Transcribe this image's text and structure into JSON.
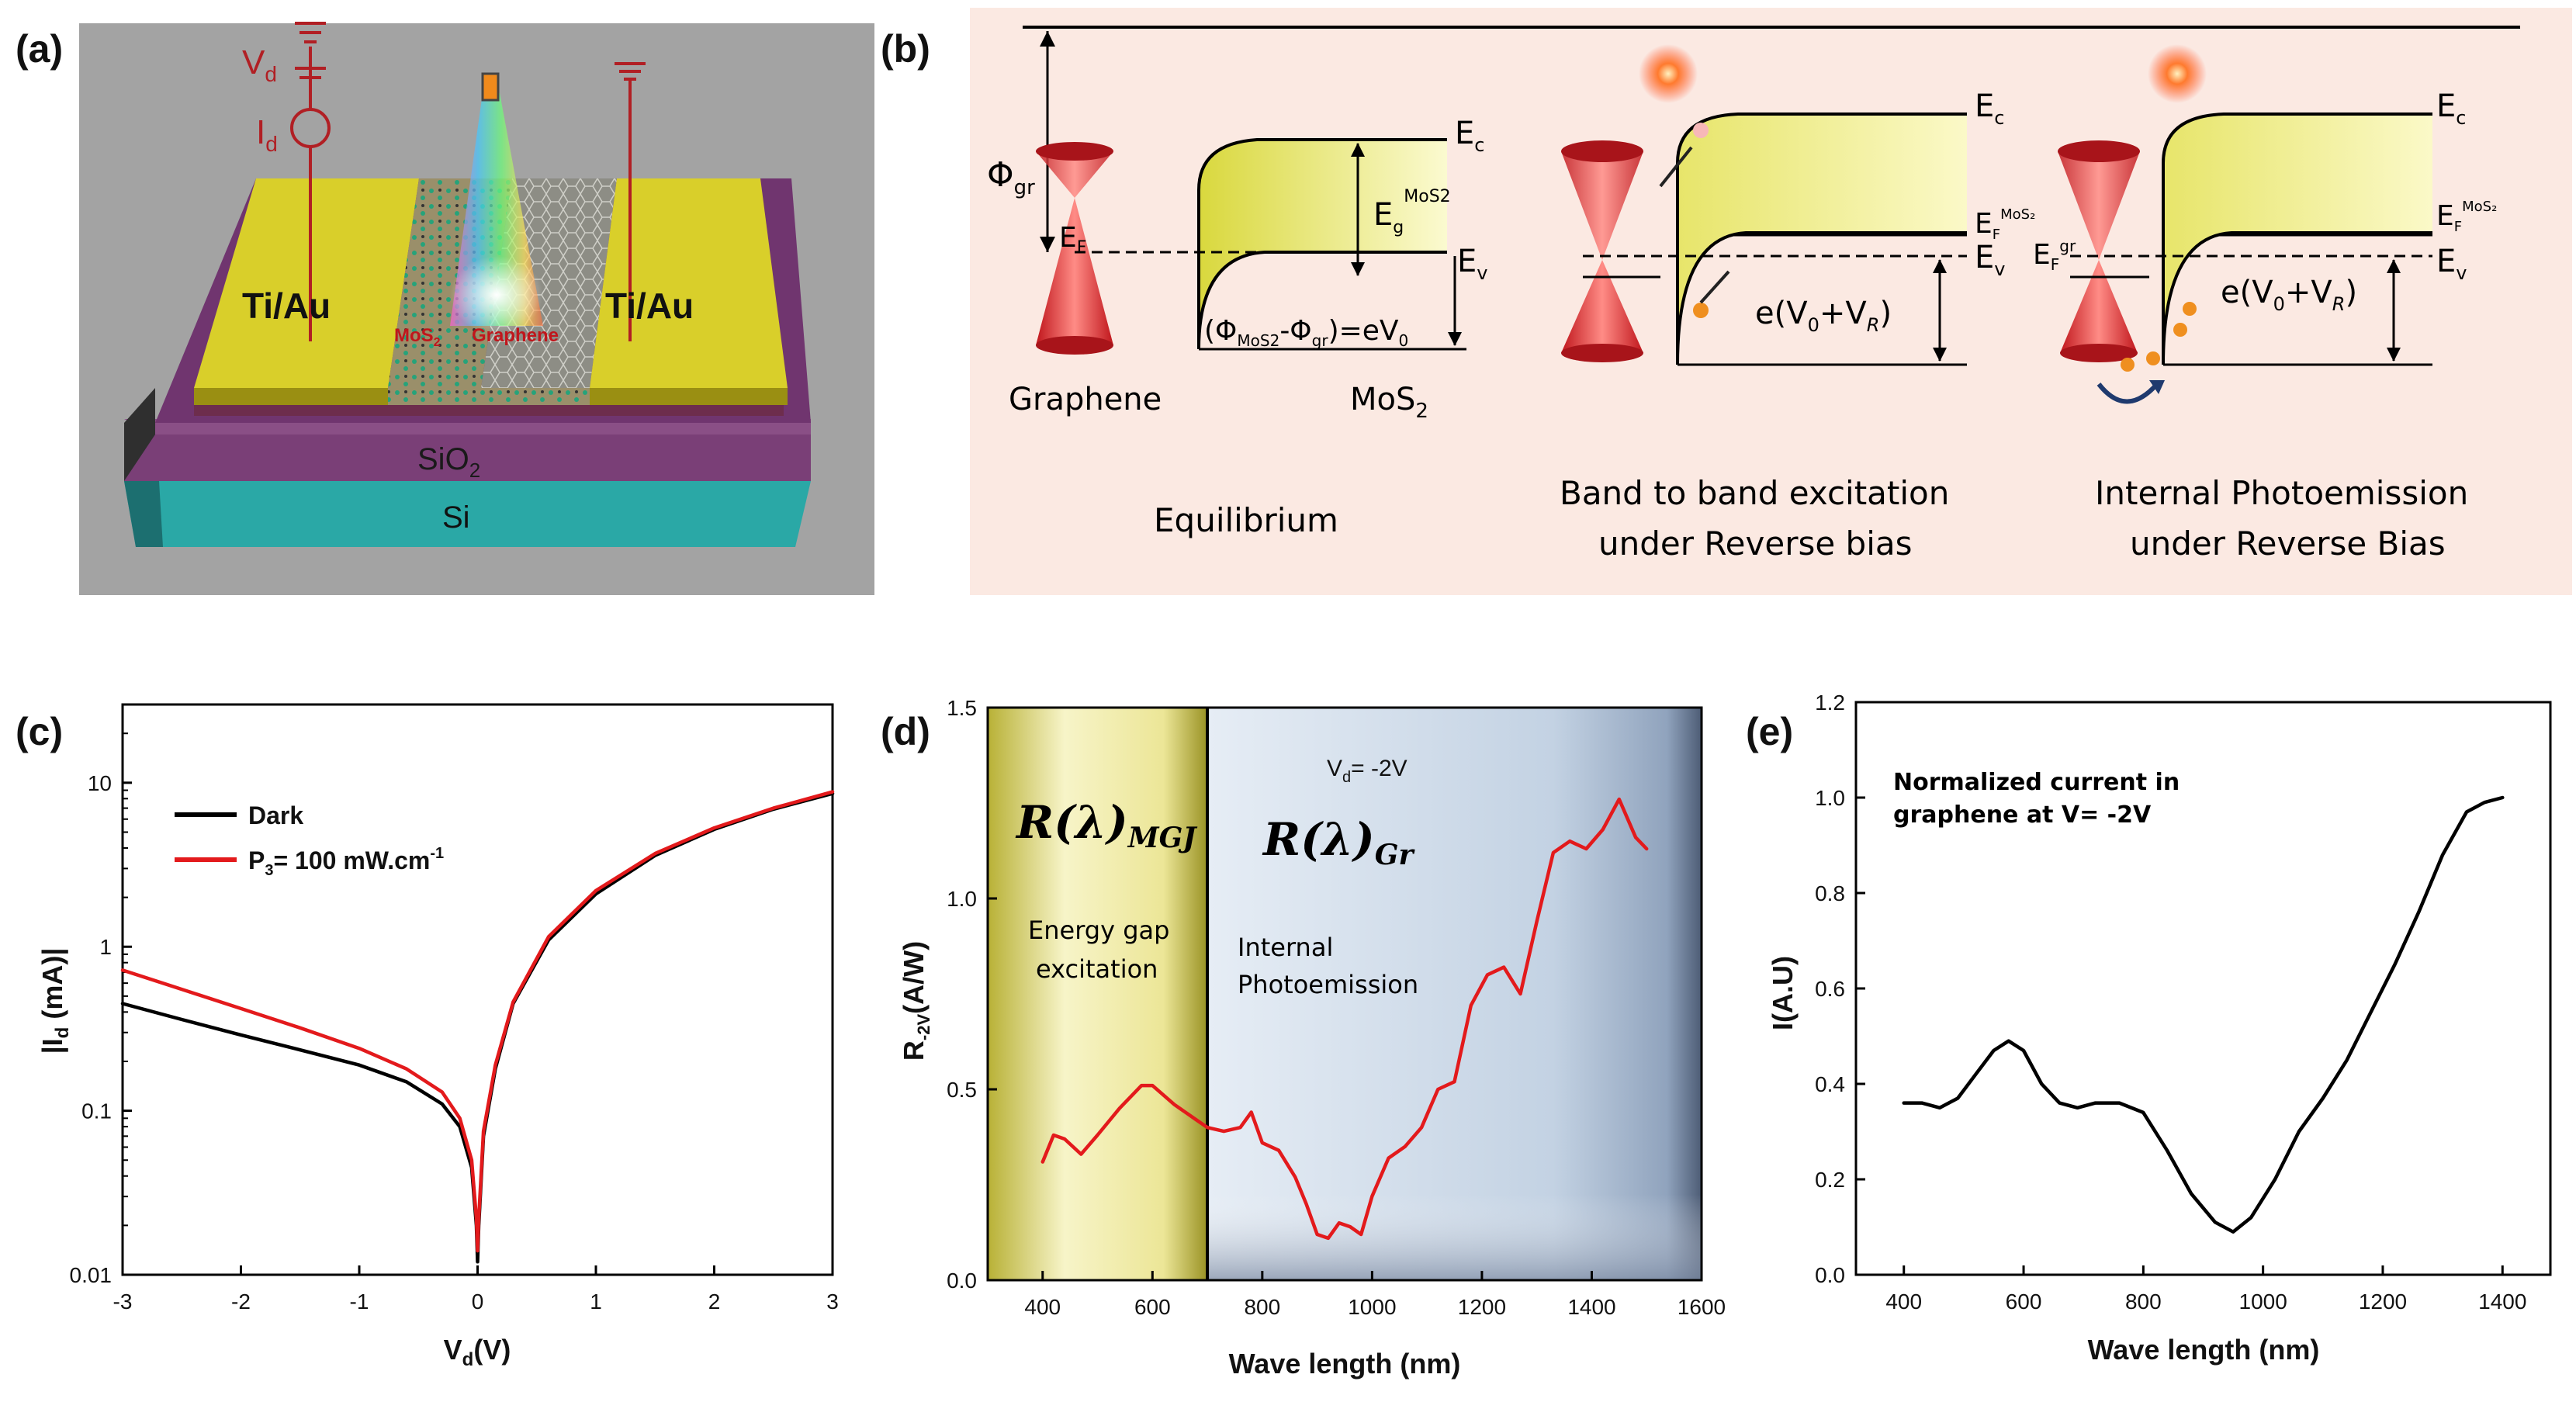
{
  "panels": {
    "a": {
      "label": "(a)",
      "vd": "V",
      "vd_sub": "d",
      "id": "I",
      "id_sub": "d",
      "contact_left": "Ti/Au",
      "contact_right": "Ti/Au",
      "mos2": "MoS",
      "mos2_sub": "2",
      "graphene": "Graphene",
      "sio2": "SiO",
      "sio2_sub": "2",
      "si": "Si"
    },
    "b": {
      "label": "(b)",
      "phi_gr": "Φ",
      "phi_gr_sub": "gr",
      "ef": "E",
      "ef_sub": "F",
      "ec1": "E",
      "ec1_sub": "c",
      "eg": "E",
      "eg_sub": "g",
      "eg_sup": "MoS2",
      "ev1": "E",
      "ev1_sub": "v",
      "barrier_eq": "(Φ",
      "barrier_eq_sub1": "MoS2",
      "barrier_eq_mid": "-Φ",
      "barrier_eq_sub2": "gr",
      "barrier_eq_end": ")=eV",
      "barrier_eq_sub3": "0",
      "graphene": "Graphene",
      "mos2": "MoS",
      "mos2_sub": "2",
      "equilibrium": "Equilibrium",
      "ec2": "E",
      "ec2_sub": "c",
      "efmos2": "E",
      "efmos2_sub": "F",
      "efmos2_sup": "MoS₂",
      "ev2": "E",
      "ev2_sub": "v",
      "bias2_pre": "e(V",
      "bias2_sub0": "0",
      "bias2_mid": "+V",
      "bias2_subR": "R",
      "bias2_end": ")",
      "case2_line1": "Band to band excitation",
      "case2_line2": "under Reverse bias",
      "ec3": "E",
      "ec3_sub": "c",
      "efgr": "E",
      "efgr_sub": "F",
      "efgr_sup": "gr",
      "efmos3": "E",
      "efmos3_sub": "F",
      "efmos3_sup": "MoS₂",
      "ev3": "E",
      "ev3_sub": "v",
      "bias3_pre": "e(V",
      "bias3_sub0": "0",
      "bias3_mid": "+V",
      "bias3_subR": "R",
      "bias3_end": ")",
      "case3_line1": "Internal Photoemission",
      "case3_line2": "under Reverse Bias"
    },
    "c": {
      "label": "(c)",
      "legend_dark": "Dark",
      "legend_p3_pre": "P",
      "legend_p3_sub": "3",
      "legend_p3_post": "= 100 mW.cm",
      "legend_p3_sup": "-1",
      "ylabel_pre": "|I",
      "ylabel_sub": "d",
      "ylabel_post": " (mA)|",
      "xlabel_pre": "V",
      "xlabel_sub": "d",
      "xlabel_post": "(V)"
    },
    "d": {
      "label": "(d)",
      "vd_note_pre": "V",
      "vd_note_sub": "d",
      "vd_note_post": "= -2V",
      "r_mgj": "R(λ)",
      "r_mgj_sub": "MGJ",
      "r_gr": "R(λ)",
      "r_gr_sub": "Gr",
      "region1_line1": "Energy gap",
      "region1_line2": "excitation",
      "region2_line1": "Internal",
      "region2_line2": "Photoemission",
      "ylabel_pre": "R",
      "ylabel_sub": "-2V",
      "ylabel_post": "(A/W)",
      "xlabel": "Wave length (nm)"
    },
    "e": {
      "label": "(e)",
      "note_line1": "Normalized current in",
      "note_line2": "graphene at V= -2V",
      "ylabel": "I(A.U)",
      "xlabel": "Wave length (nm)"
    }
  },
  "chart_data": [
    {
      "id": "c",
      "type": "line",
      "yscale": "log",
      "xlim": [
        -3,
        3
      ],
      "ylim": [
        0.01,
        30
      ],
      "xticks": [
        -3,
        -2,
        -1,
        0,
        1,
        2,
        3
      ],
      "yticks": [
        0.01,
        0.1,
        1,
        10
      ],
      "ytick_labels": [
        "0.01",
        "0.1",
        "1",
        "10"
      ],
      "series": [
        {
          "name": "Dark",
          "color": "#000000",
          "x": [
            -3,
            -2.5,
            -2,
            -1.5,
            -1,
            -0.6,
            -0.3,
            -0.15,
            -0.05,
            -0.01,
            0.0,
            0.01,
            0.05,
            0.15,
            0.3,
            0.6,
            1,
            1.5,
            2,
            2.5,
            3
          ],
          "y": [
            0.45,
            0.36,
            0.29,
            0.235,
            0.19,
            0.15,
            0.11,
            0.08,
            0.045,
            0.02,
            0.012,
            0.02,
            0.07,
            0.18,
            0.45,
            1.1,
            2.1,
            3.6,
            5.2,
            6.9,
            8.6
          ]
        },
        {
          "name": "P3 = 100 mW.cm-1",
          "color": "#e31a1c",
          "x": [
            -3,
            -2.5,
            -2,
            -1.5,
            -1,
            -0.6,
            -0.3,
            -0.15,
            -0.05,
            -0.01,
            0.0,
            0.01,
            0.05,
            0.15,
            0.3,
            0.6,
            1,
            1.5,
            2,
            2.5,
            3
          ],
          "y": [
            0.72,
            0.55,
            0.42,
            0.32,
            0.24,
            0.18,
            0.13,
            0.09,
            0.05,
            0.022,
            0.014,
            0.022,
            0.075,
            0.19,
            0.46,
            1.15,
            2.2,
            3.7,
            5.3,
            7.0,
            8.8
          ]
        }
      ]
    },
    {
      "id": "d",
      "type": "line",
      "xlim": [
        300,
        1600
      ],
      "ylim": [
        0,
        1.5
      ],
      "xticks": [
        400,
        600,
        800,
        1000,
        1200,
        1400,
        1600
      ],
      "yticks": [
        0.0,
        0.5,
        1.0,
        1.5
      ],
      "ytick_labels": [
        "0.0",
        "0.5",
        "1.0",
        "1.5"
      ],
      "region_split": 700,
      "series": [
        {
          "name": "R-2V",
          "color": "#e31a1c",
          "x": [
            400,
            420,
            440,
            470,
            500,
            540,
            580,
            600,
            640,
            680,
            700,
            730,
            760,
            780,
            800,
            830,
            860,
            880,
            900,
            920,
            940,
            960,
            980,
            1000,
            1030,
            1060,
            1090,
            1120,
            1150,
            1180,
            1210,
            1240,
            1270,
            1300,
            1330,
            1360,
            1390,
            1420,
            1450,
            1480,
            1500
          ],
          "y": [
            0.31,
            0.38,
            0.37,
            0.33,
            0.38,
            0.45,
            0.51,
            0.51,
            0.46,
            0.42,
            0.4,
            0.39,
            0.4,
            0.44,
            0.36,
            0.34,
            0.27,
            0.2,
            0.12,
            0.11,
            0.15,
            0.14,
            0.12,
            0.22,
            0.32,
            0.35,
            0.4,
            0.5,
            0.52,
            0.72,
            0.8,
            0.82,
            0.75,
            0.94,
            1.12,
            1.15,
            1.13,
            1.18,
            1.26,
            1.16,
            1.13
          ]
        }
      ]
    },
    {
      "id": "e",
      "type": "line",
      "xlim": [
        320,
        1480
      ],
      "ylim": [
        0,
        1.2
      ],
      "xticks": [
        400,
        600,
        800,
        1000,
        1200,
        1400
      ],
      "yticks": [
        0.0,
        0.2,
        0.4,
        0.6,
        0.8,
        1.0,
        1.2
      ],
      "ytick_labels": [
        "0.0",
        "0.2",
        "0.4",
        "0.6",
        "0.8",
        "1.0",
        "1.2"
      ],
      "series": [
        {
          "name": "Normalized current",
          "color": "#000000",
          "x": [
            400,
            430,
            460,
            490,
            520,
            550,
            575,
            600,
            630,
            660,
            690,
            720,
            760,
            800,
            840,
            880,
            920,
            950,
            980,
            1020,
            1060,
            1100,
            1140,
            1180,
            1220,
            1260,
            1300,
            1340,
            1370,
            1400
          ],
          "y": [
            0.36,
            0.36,
            0.35,
            0.37,
            0.42,
            0.47,
            0.49,
            0.47,
            0.4,
            0.36,
            0.35,
            0.36,
            0.36,
            0.34,
            0.26,
            0.17,
            0.11,
            0.09,
            0.12,
            0.2,
            0.3,
            0.37,
            0.45,
            0.55,
            0.65,
            0.76,
            0.88,
            0.97,
            0.99,
            1.0
          ]
        }
      ]
    }
  ]
}
